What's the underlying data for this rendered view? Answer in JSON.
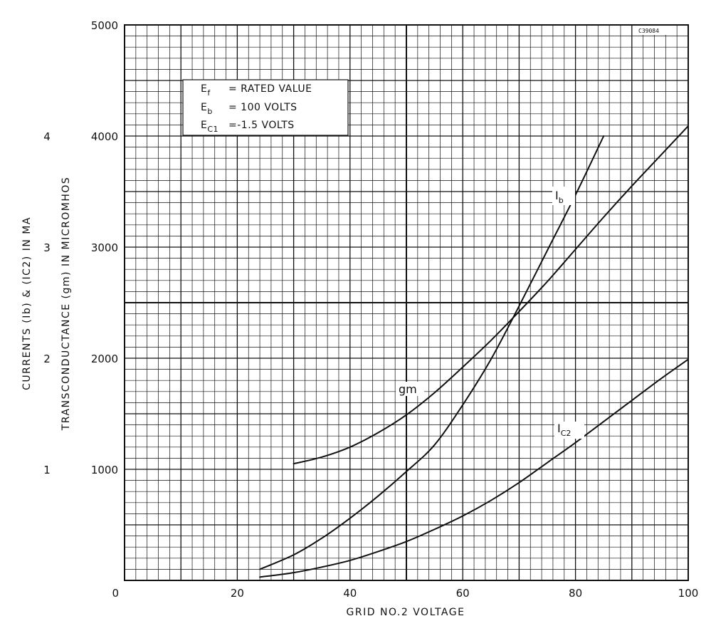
{
  "chart_data": {
    "type": "line",
    "chart_code": "C39084",
    "conditions": [
      {
        "symbol": "E",
        "sub": "f",
        "text": "= RATED VALUE"
      },
      {
        "symbol": "E",
        "sub": "b",
        "text": "= 100 VOLTS"
      },
      {
        "symbol": "E",
        "sub": "C1",
        "text": "=-1.5 VOLTS"
      }
    ],
    "xlabel": "GRID NO.2 VOLTAGE",
    "xlim": [
      0,
      100
    ],
    "x_ticks": [
      "0",
      "20",
      "40",
      "60",
      "80",
      "100"
    ],
    "ylabel_left_outer": "CURRENTS (Ib) & (IC2) IN MA",
    "ylabel_left_inner": "TRANSCONDUCTANCE (gm) IN MICROMHOS",
    "y_left_outer_lim": [
      0,
      5
    ],
    "y_left_outer_ticks": [
      "1",
      "2",
      "3",
      "4"
    ],
    "y_left_inner_lim": [
      0,
      5000
    ],
    "y_left_inner_ticks": [
      "0",
      "1000",
      "2000",
      "3000",
      "4000",
      "5000"
    ],
    "grid": true,
    "series": [
      {
        "name": "gm",
        "label_main": "gm",
        "label_sub": "",
        "axis": "transconductance",
        "x": [
          30,
          35,
          40,
          45,
          50,
          55,
          60,
          65,
          70,
          75,
          80,
          85,
          90,
          95,
          100
        ],
        "y": [
          1050,
          1110,
          1200,
          1330,
          1490,
          1690,
          1920,
          2160,
          2420,
          2690,
          2980,
          3270,
          3550,
          3820,
          4090
        ]
      },
      {
        "name": "Ib",
        "label_main": "I",
        "label_sub": "b",
        "axis": "current",
        "x": [
          24,
          30,
          35,
          40,
          45,
          50,
          55,
          60,
          65,
          70,
          75,
          80,
          85
        ],
        "y": [
          0.1,
          0.23,
          0.38,
          0.56,
          0.76,
          0.98,
          1.22,
          1.58,
          1.99,
          2.47,
          2.97,
          3.47,
          4.0
        ]
      },
      {
        "name": "IC2",
        "label_main": "I",
        "label_sub": "C2",
        "axis": "current",
        "x": [
          24,
          30,
          35,
          40,
          45,
          50,
          55,
          60,
          65,
          70,
          75,
          80,
          85,
          90,
          95,
          100
        ],
        "y": [
          0.03,
          0.07,
          0.12,
          0.18,
          0.26,
          0.35,
          0.46,
          0.58,
          0.72,
          0.88,
          1.06,
          1.24,
          1.43,
          1.62,
          1.81,
          1.99
        ]
      }
    ]
  }
}
